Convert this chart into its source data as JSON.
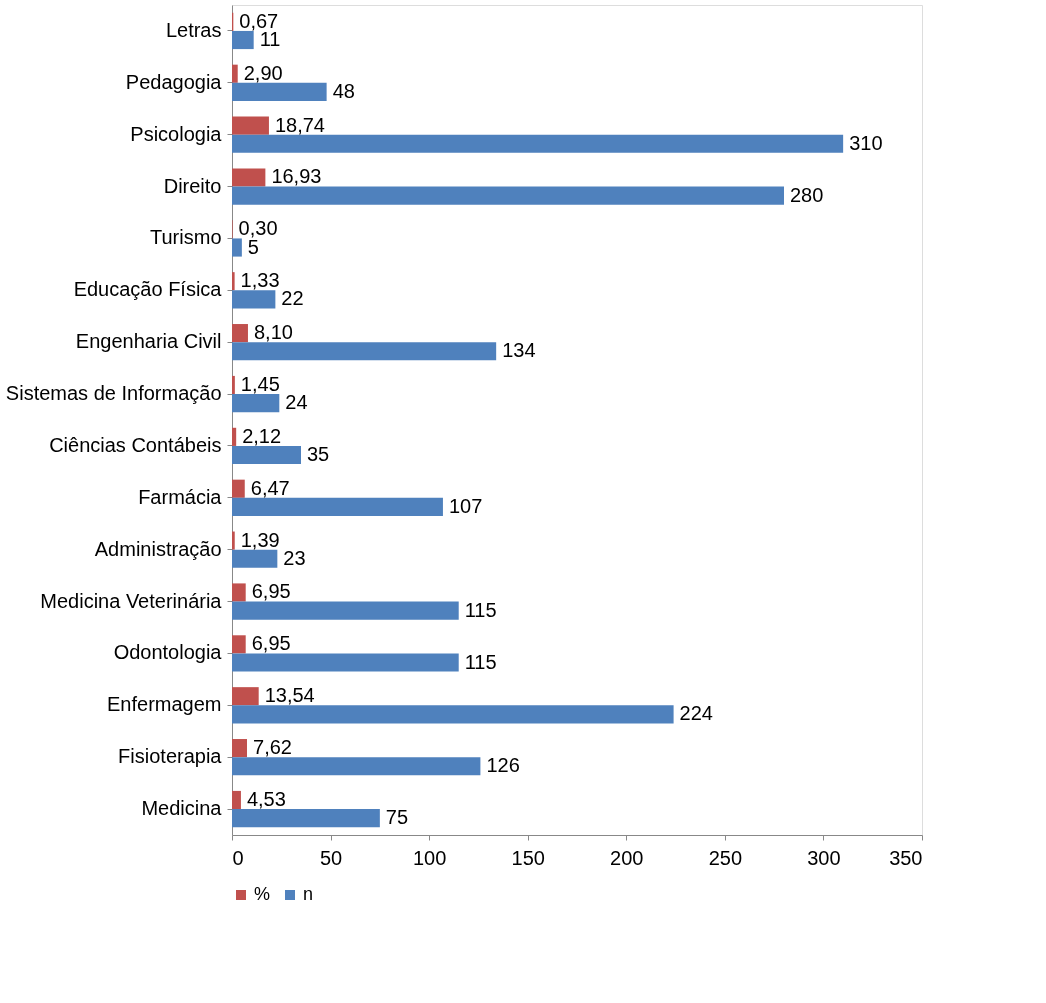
{
  "chart_data": {
    "type": "bar",
    "orientation": "horizontal",
    "categories": [
      "Letras",
      "Pedagogia",
      "Psicologia",
      "Direito",
      "Turismo",
      "Educação Física",
      "Engenharia Civil",
      "Sistemas de Informação",
      "Ciências Contábeis",
      "Farmácia",
      "Administração",
      "Medicina Veterinária",
      "Odontologia",
      "Enfermagem",
      "Fisioterapia",
      "Medicina"
    ],
    "series": [
      {
        "name": "%",
        "color": "#c0504d",
        "values": [
          0.67,
          2.9,
          18.74,
          16.93,
          0.3,
          1.33,
          8.1,
          1.45,
          2.12,
          6.47,
          1.39,
          6.95,
          6.95,
          13.54,
          7.62,
          4.53
        ],
        "value_labels": [
          "0,67",
          "2,90",
          "18,74",
          "16,93",
          "0,30",
          "1,33",
          "8,10",
          "1,45",
          "2,12",
          "6,47",
          "1,39",
          "6,95",
          "6,95",
          "13,54",
          "7,62",
          "4,53"
        ]
      },
      {
        "name": "n",
        "color": "#4f81bd",
        "values": [
          11,
          48,
          310,
          280,
          5,
          22,
          134,
          24,
          35,
          107,
          23,
          115,
          115,
          224,
          126,
          75
        ],
        "value_labels": [
          "11",
          "48",
          "310",
          "280",
          "5",
          "22",
          "134",
          "24",
          "35",
          "107",
          "23",
          "115",
          "115",
          "224",
          "126",
          "75"
        ]
      }
    ],
    "xlim": [
      0,
      350
    ],
    "xticks": [
      0,
      50,
      100,
      150,
      200,
      250,
      300,
      350
    ],
    "grid": false,
    "legend": "bottom"
  }
}
